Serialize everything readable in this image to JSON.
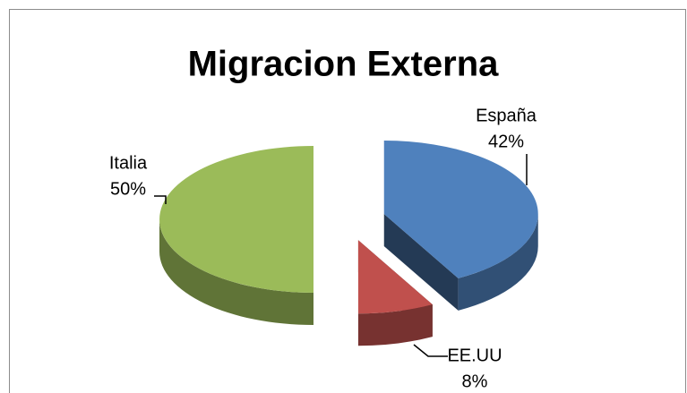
{
  "chart_data": {
    "type": "pie",
    "title": "Migracion Externa",
    "categories": [
      "España",
      "EE.UU",
      "Italia"
    ],
    "values": [
      42,
      8,
      50
    ],
    "value_labels": [
      "42%",
      "8%",
      "50%"
    ],
    "colors": [
      "#4f81bd",
      "#c0504d",
      "#9bbb59"
    ],
    "explode": true,
    "three_d": true
  }
}
